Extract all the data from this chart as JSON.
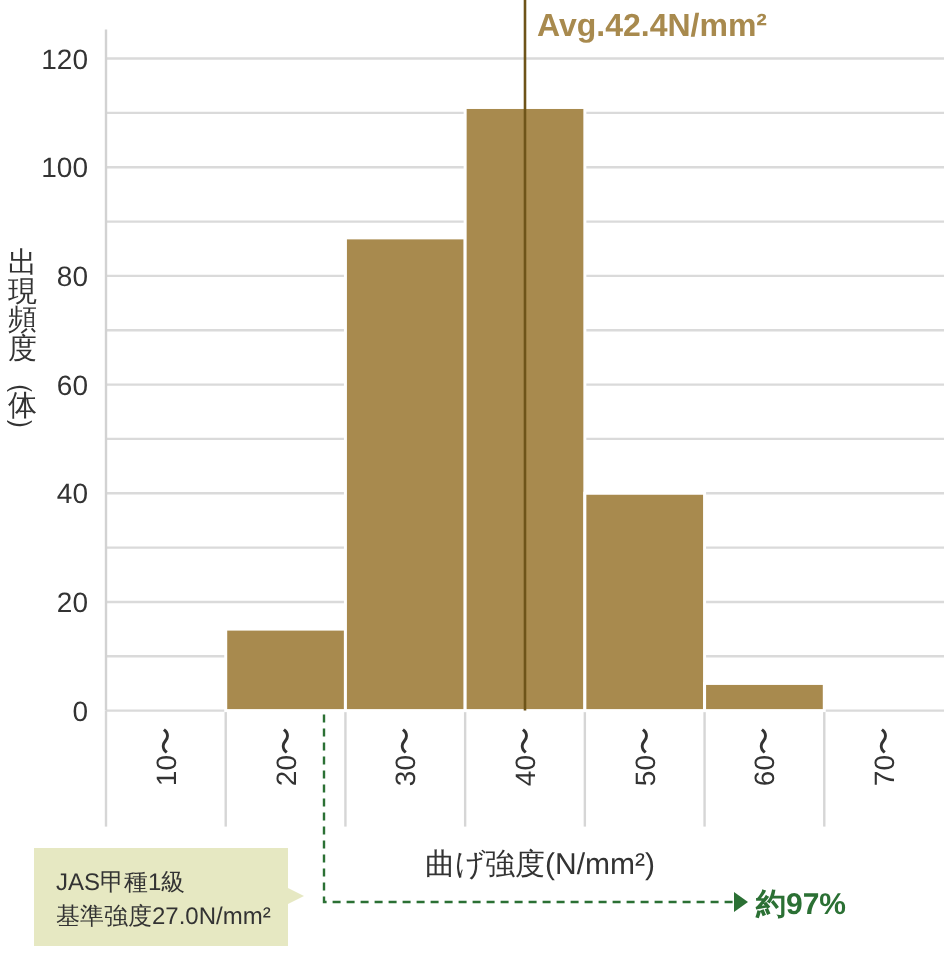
{
  "chart_data": {
    "type": "bar",
    "categories": [
      "10〜",
      "20〜",
      "30〜",
      "40〜",
      "50〜",
      "60〜",
      "70〜"
    ],
    "values": [
      0,
      15,
      87,
      111,
      40,
      5,
      0
    ],
    "color": "#a88a4e",
    "ylim": [
      0,
      125
    ],
    "yticks": [
      0,
      {
        "value": 10,
        "label": null
      },
      20,
      {
        "value": 30,
        "label": null
      },
      40,
      {
        "value": 50,
        "label": null
      },
      60,
      {
        "value": 70,
        "label": null
      },
      80,
      {
        "value": 90,
        "label": null
      },
      100,
      {
        "value": 110,
        "label": null
      },
      120
    ],
    "grid": "y",
    "xlabel": "曲げ強度(N/mm²)",
    "ylabel": "出現頻度（体）",
    "ref_lines": [
      {
        "axis": "x",
        "value": "40〜",
        "label": "Avg.42.4N/mm²",
        "color": "#6e5419"
      }
    ],
    "annotations": [
      "JAS甲種1級",
      "基準強度27.0N/mm²",
      "約97%"
    ]
  }
}
